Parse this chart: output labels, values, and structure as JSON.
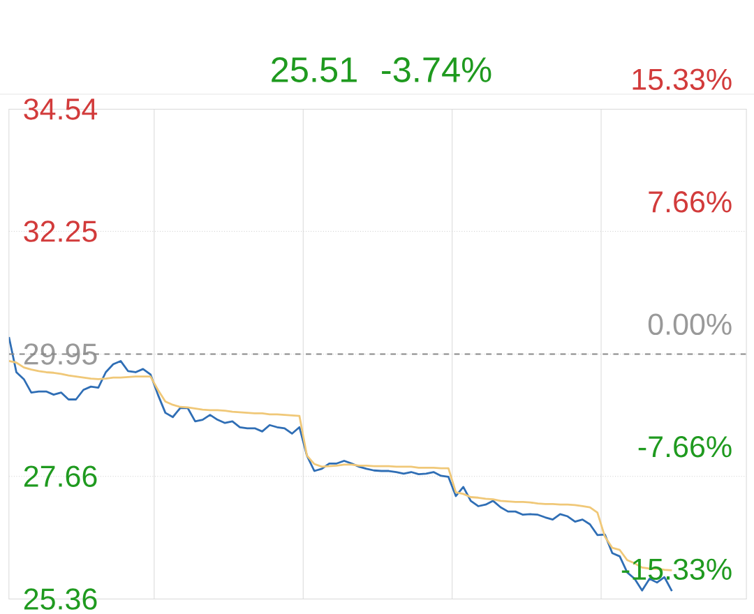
{
  "chart_data": {
    "type": "line",
    "categories": [
      null,
      null,
      null,
      null,
      null,
      null,
      null,
      null,
      null,
      null,
      null,
      null,
      null,
      null,
      null,
      null,
      null,
      null,
      null,
      null,
      null,
      null,
      null,
      null,
      null,
      null,
      null,
      null,
      null,
      null,
      null,
      null,
      null,
      null,
      null,
      null,
      null,
      null,
      null,
      null,
      null,
      null,
      null,
      null,
      null,
      null,
      null,
      null,
      null,
      null,
      null,
      null,
      null,
      null,
      null,
      null,
      null,
      null,
      null,
      null,
      null,
      null,
      null,
      null,
      null,
      null,
      null,
      null,
      null,
      null,
      null,
      null,
      null,
      null,
      null,
      null,
      null,
      null,
      null,
      null,
      null,
      null,
      null,
      null,
      null,
      null,
      null,
      null,
      null,
      null,
      null,
      null,
      null,
      null,
      null,
      null,
      null,
      null,
      null,
      null
    ],
    "series": [
      {
        "color": "#2f6eb5",
        "values": [
          30.27,
          29.61,
          29.48,
          29.23,
          29.25,
          29.25,
          29.19,
          29.23,
          29.1,
          29.1,
          29.28,
          29.34,
          29.32,
          29.61,
          29.76,
          29.82,
          29.63,
          29.61,
          29.67,
          29.57,
          29.19,
          28.85,
          28.77,
          28.94,
          28.94,
          28.69,
          28.72,
          28.81,
          28.72,
          28.66,
          28.69,
          28.58,
          28.56,
          28.56,
          28.5,
          28.62,
          28.58,
          28.56,
          28.46,
          28.58,
          28.05,
          27.76,
          27.8,
          27.9,
          27.9,
          27.95,
          27.9,
          27.84,
          27.8,
          27.77,
          27.76,
          27.76,
          27.74,
          27.71,
          27.74,
          27.7,
          27.71,
          27.74,
          27.67,
          27.65,
          27.29,
          27.46,
          27.2,
          27.1,
          27.13,
          27.2,
          27.08,
          27.0,
          27.0,
          26.94,
          26.95,
          26.94,
          26.89,
          26.85,
          26.95,
          26.91,
          26.81,
          26.85,
          26.76,
          26.56,
          26.57,
          26.22,
          26.16,
          25.86,
          25.74,
          25.52,
          25.74,
          25.67,
          25.77,
          25.51,
          null,
          null,
          null,
          null,
          null,
          null,
          null,
          null,
          null,
          null
        ]
      },
      {
        "color": "#f0c878",
        "values": [
          29.82,
          29.79,
          29.7,
          29.66,
          29.63,
          29.61,
          29.6,
          29.58,
          29.55,
          29.53,
          29.51,
          29.49,
          29.48,
          29.49,
          29.51,
          29.51,
          29.52,
          29.53,
          29.53,
          29.53,
          29.28,
          29.06,
          29.0,
          28.96,
          28.95,
          28.93,
          28.91,
          28.9,
          28.9,
          28.89,
          28.87,
          28.86,
          28.85,
          28.84,
          28.84,
          28.82,
          28.82,
          28.81,
          28.8,
          28.79,
          28.05,
          27.89,
          27.84,
          27.85,
          27.86,
          27.88,
          27.88,
          27.86,
          27.86,
          27.85,
          27.85,
          27.85,
          27.84,
          27.84,
          27.84,
          27.82,
          27.82,
          27.82,
          27.81,
          27.81,
          27.36,
          27.33,
          27.27,
          27.26,
          27.24,
          27.23,
          27.2,
          27.19,
          27.18,
          27.18,
          27.17,
          27.15,
          27.14,
          27.14,
          27.13,
          27.13,
          27.12,
          27.1,
          27.08,
          26.98,
          26.53,
          26.32,
          26.28,
          26.09,
          26.03,
          25.95,
          25.93,
          25.93,
          25.91,
          25.9,
          null,
          null,
          null,
          null,
          null,
          null,
          null,
          null,
          null,
          null
        ]
      }
    ],
    "ylim": [
      25.36,
      34.54
    ],
    "yticks": [
      25.36,
      27.66,
      29.95,
      32.25,
      34.54
    ],
    "y2lim": [
      -15.33,
      15.33
    ],
    "y2ticks": [
      {
        "value": -15.33,
        "label": "-15.33%"
      },
      {
        "value": -7.66,
        "label": "-7.66%"
      },
      {
        "value": 0,
        "label": "0.00%"
      },
      {
        "value": 7.66,
        "label": "7.66%"
      },
      {
        "value": 15.33,
        "label": "15.33%"
      }
    ],
    "ref_lines": [
      {
        "axis": "y",
        "value": 29.95,
        "color": "#888888",
        "line_style": "dashed"
      }
    ],
    "annotations": [
      "25.51",
      "-3.74%"
    ],
    "grid": true,
    "marker": "none",
    "line_style": "solid"
  }
}
